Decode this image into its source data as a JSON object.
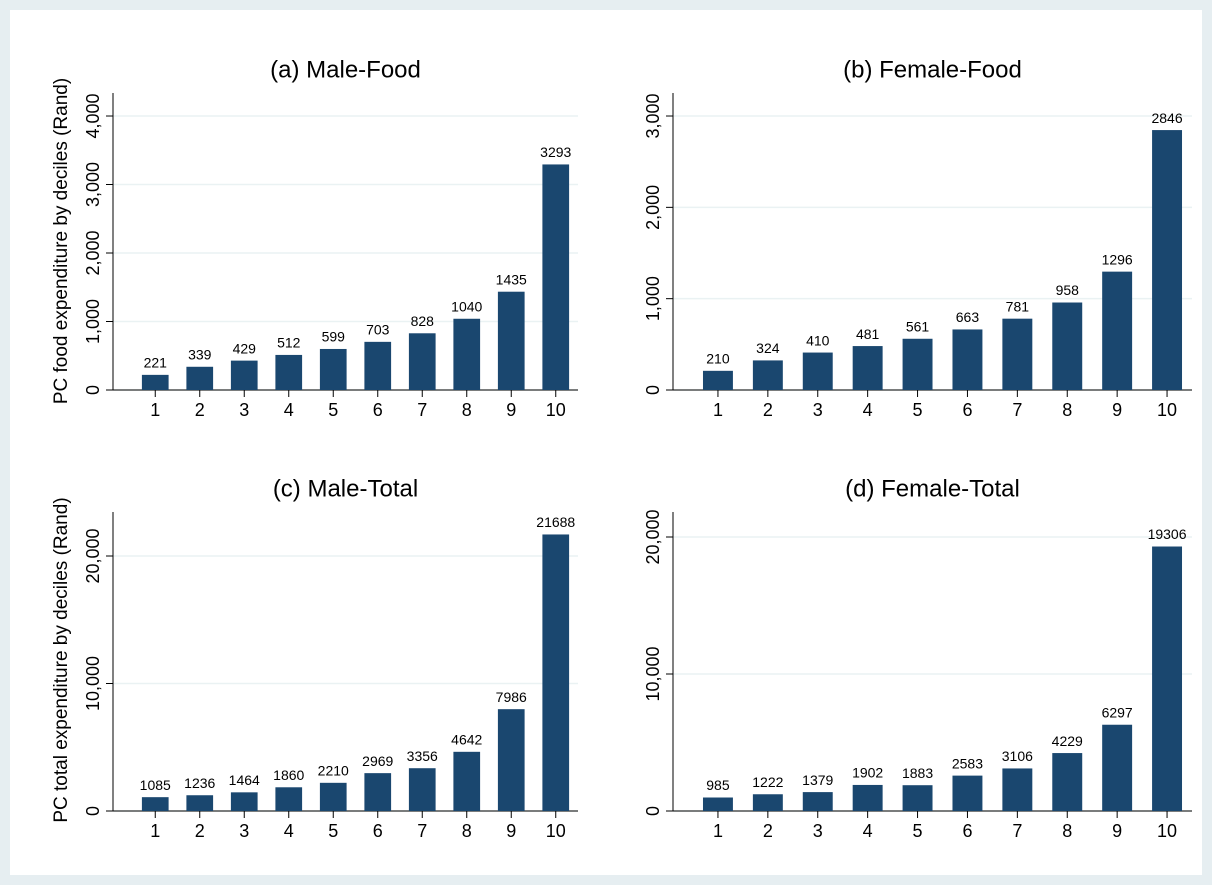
{
  "chart_data": [
    {
      "type": "bar",
      "title": "(a) Male-Food",
      "ylabel": "PC food expenditure by deciles (Rand)",
      "categories": [
        "1",
        "2",
        "3",
        "4",
        "5",
        "6",
        "7",
        "8",
        "9",
        "10"
      ],
      "values": [
        221,
        339,
        429,
        512,
        599,
        703,
        828,
        1040,
        1435,
        3293
      ],
      "color": "#1a476f",
      "ylim": [
        0,
        4336
      ],
      "yticks": [
        0,
        {
          "value": 1000,
          "label": "1,000"
        },
        {
          "value": 2000,
          "label": "2,000"
        },
        {
          "value": 3000,
          "label": "3,000"
        },
        {
          "value": 4000,
          "label": "4,000"
        }
      ],
      "grid": true
    },
    {
      "type": "bar",
      "title": "(b) Female-Food",
      "categories": [
        "1",
        "2",
        "3",
        "4",
        "5",
        "6",
        "7",
        "8",
        "9",
        "10"
      ],
      "values": [
        210,
        324,
        410,
        481,
        561,
        663,
        781,
        958,
        1296,
        2846
      ],
      "color": "#1a476f",
      "ylim": [
        0,
        3252
      ],
      "yticks": [
        0,
        {
          "value": 1000,
          "label": "1,000"
        },
        {
          "value": 2000,
          "label": "2,000"
        },
        {
          "value": 3000,
          "label": "3,000"
        }
      ],
      "grid": true
    },
    {
      "type": "bar",
      "title": "(c) Male-Total",
      "ylabel": "PC total expenditure by deciles (Rand)",
      "categories": [
        "1",
        "2",
        "3",
        "4",
        "5",
        "6",
        "7",
        "8",
        "9",
        "10"
      ],
      "values": [
        1085,
        1236,
        1464,
        1860,
        2210,
        2969,
        3356,
        4642,
        7986,
        21688
      ],
      "color": "#1a476f",
      "ylim": [
        0,
        23450
      ],
      "yticks": [
        0,
        {
          "value": 10000,
          "label": "10,000"
        },
        {
          "value": 20000,
          "label": "20,000"
        }
      ],
      "grid": true
    },
    {
      "type": "bar",
      "title": "(d) Female-Total",
      "categories": [
        "1",
        "2",
        "3",
        "4",
        "5",
        "6",
        "7",
        "8",
        "9",
        "10"
      ],
      "values": [
        985,
        1222,
        1379,
        1902,
        1883,
        2583,
        3106,
        4229,
        6297,
        19306
      ],
      "color": "#1a476f",
      "ylim": [
        0,
        21825
      ],
      "yticks": [
        0,
        {
          "value": 10000,
          "label": "10,000"
        },
        {
          "value": 20000,
          "label": "20,000"
        }
      ],
      "grid": true
    }
  ]
}
